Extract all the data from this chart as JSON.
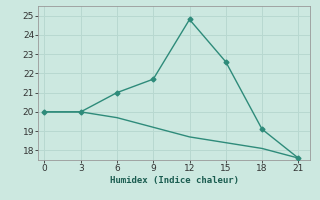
{
  "line1_x": [
    0,
    3,
    6,
    9,
    12,
    15,
    18,
    21
  ],
  "line1_y": [
    20.0,
    20.0,
    21.0,
    21.7,
    24.8,
    22.6,
    19.1,
    17.6
  ],
  "line2_x": [
    0,
    3,
    6,
    9,
    12,
    15,
    18,
    21
  ],
  "line2_y": [
    20.0,
    20.0,
    19.7,
    19.2,
    18.7,
    18.4,
    18.1,
    17.6
  ],
  "line_color": "#2e8b7a",
  "bg_color": "#cce8e0",
  "grid_color": "#b8d8d0",
  "xlabel": "Humidex (Indice chaleur)",
  "xlim": [
    -0.5,
    22
  ],
  "ylim": [
    17.5,
    25.5
  ],
  "xticks": [
    0,
    3,
    6,
    9,
    12,
    15,
    18,
    21
  ],
  "yticks": [
    18,
    19,
    20,
    21,
    22,
    23,
    24,
    25
  ],
  "marker": "D",
  "markersize": 2.5,
  "linewidth": 1.0,
  "font_family": "monospace",
  "tick_fontsize": 6.5,
  "xlabel_fontsize": 6.5
}
